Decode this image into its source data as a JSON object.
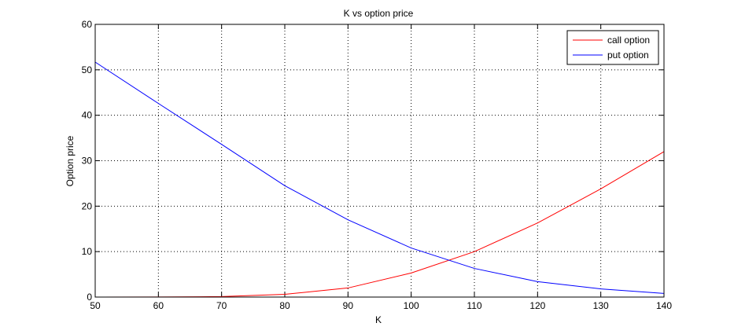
{
  "chart_data": {
    "type": "line",
    "title": "K vs option price",
    "xlabel": "K",
    "ylabel": "Option price",
    "xlim": [
      50,
      140
    ],
    "ylim": [
      0,
      60
    ],
    "xticks": [
      "50",
      "60",
      "70",
      "80",
      "90",
      "100",
      "110",
      "120",
      "130",
      "140"
    ],
    "yticks": [
      "0",
      "10",
      "20",
      "30",
      "40",
      "50",
      "60"
    ],
    "grid": true,
    "legend_position": "top-right",
    "x": [
      50,
      60,
      70,
      80,
      90,
      100,
      110,
      120,
      130,
      140
    ],
    "series": [
      {
        "name": "call option",
        "color": "#ff0000",
        "values": [
          0.0,
          0.02,
          0.1,
          0.6,
          2.0,
          5.3,
          10.0,
          16.3,
          23.8,
          32.0
        ]
      },
      {
        "name": "put option",
        "color": "#0000ff",
        "values": [
          51.7,
          42.6,
          33.6,
          24.5,
          17.0,
          10.8,
          6.3,
          3.4,
          1.8,
          0.8
        ]
      }
    ]
  }
}
